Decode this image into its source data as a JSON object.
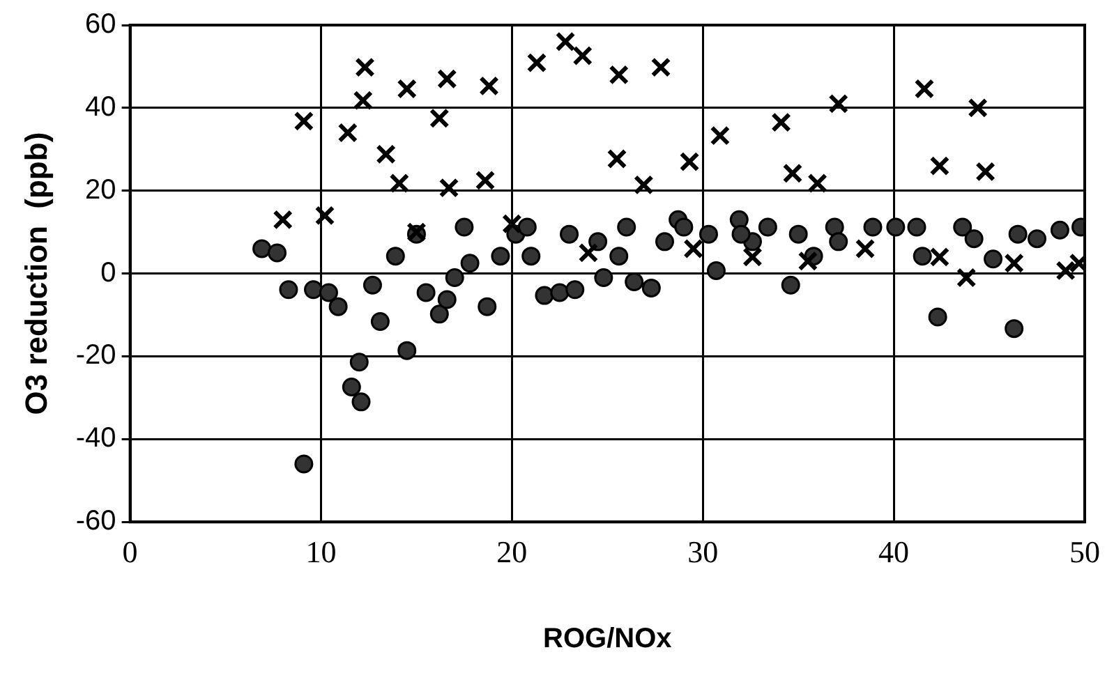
{
  "chart_data": {
    "type": "scatter",
    "xlabel": "ROG/NOx",
    "ylabel": "O3 reduction  (ppb)",
    "xlim": [
      0,
      50
    ],
    "xticks": [
      0,
      10,
      20,
      30,
      40,
      50
    ],
    "ylim": [
      -60,
      60
    ],
    "yticks": [
      -60,
      -40,
      -20,
      0,
      20,
      40,
      60
    ],
    "grid": true,
    "legend": false,
    "series": [
      {
        "color": "#000000",
        "marker": "cross",
        "x": [
          8.0,
          9.1,
          10.2,
          11.4,
          12.2,
          12.3,
          13.4,
          14.1,
          14.5,
          16.2,
          16.6,
          16.7,
          18.6,
          18.8,
          21.3,
          22.8,
          23.7,
          25.5,
          25.6,
          26.9,
          27.8,
          29.3,
          29.5,
          30.9,
          32.6,
          34.1,
          34.7,
          36.0,
          37.1,
          41.6,
          42.4,
          42.4,
          43.8,
          44.4,
          44.8,
          46.3,
          49.0,
          49.7,
          15.0,
          20.0,
          24.0,
          35.5,
          38.5
        ],
        "values": [
          13,
          36.8,
          14,
          34,
          41.8,
          49.8,
          28.8,
          21.8,
          44.6,
          37.5,
          47,
          20.7,
          22.5,
          45.3,
          50.9,
          56,
          52.6,
          27.7,
          48,
          21.4,
          49.8,
          27,
          6,
          33.3,
          4,
          36.5,
          24.2,
          21.8,
          41,
          44.6,
          26,
          4,
          -1,
          40,
          24.6,
          2.5,
          0.7,
          2.5,
          10,
          12,
          5,
          3,
          6
        ]
      },
      {
        "color": "#333333",
        "marker": "circle",
        "x": [
          6.9,
          7.7,
          8.3,
          9.1,
          9.6,
          10.4,
          10.9,
          11.6,
          12.1,
          12.0,
          13.1,
          14.5,
          12.7,
          13.9,
          15.5,
          16.2,
          16.6,
          17.0,
          17.8,
          18.7,
          19.4,
          20.2,
          21.0,
          21.7,
          22.5,
          23.3,
          24.5,
          24.8,
          25.6,
          26.4,
          27.3,
          28.0,
          28.7,
          30.3,
          30.7,
          31.9,
          32.6,
          33.4,
          34.6,
          35.8,
          36.9,
          37.1,
          38.9,
          40.1,
          41.2,
          41.5,
          42.3,
          43.6,
          44.2,
          45.2,
          46.3,
          46.5,
          47.5,
          48.7,
          49.8,
          15.0,
          17.5,
          20.8,
          23.0,
          26.0,
          29.0,
          32.0,
          35.0
        ],
        "values": [
          6,
          5,
          -3.9,
          -46,
          -3.9,
          -4.6,
          -8,
          -27.4,
          -31,
          -21.4,
          -11.6,
          -18.6,
          -2.8,
          4.2,
          -4.6,
          -9.8,
          -6.3,
          -1,
          2.5,
          -8,
          4.2,
          9.5,
          4.2,
          -5.3,
          -4.6,
          -3.9,
          7.7,
          -1,
          4.2,
          -2,
          -3.5,
          7.7,
          13,
          9.5,
          0.7,
          13,
          7.7,
          11.2,
          -2.8,
          4.2,
          11.2,
          7.7,
          11.2,
          11.2,
          11.2,
          4.2,
          -10.5,
          11.2,
          8.4,
          3.5,
          -13.3,
          9.5,
          8.4,
          10.5,
          11.2,
          9.5,
          11.2,
          11.2,
          9.5,
          11.2,
          11.2,
          9.5,
          9.5
        ]
      }
    ]
  }
}
